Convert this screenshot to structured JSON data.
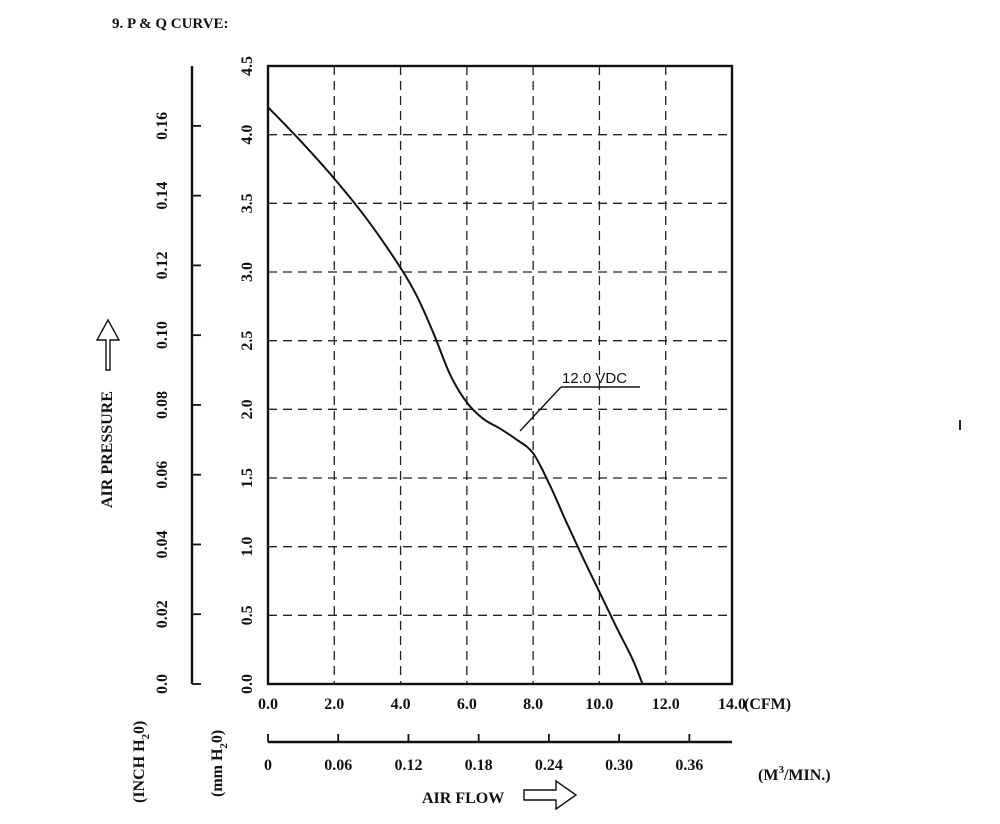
{
  "section_title": "9. P & Q CURVE:",
  "chart_data": {
    "type": "line",
    "title": "",
    "x_primary": {
      "label": "(CFM)",
      "lim": [
        0,
        14
      ],
      "ticks": [
        0,
        2,
        4,
        6,
        8,
        10,
        12,
        14
      ],
      "tick_labels": [
        "0.0",
        "2.0",
        "4.0",
        "6.0",
        "8.0",
        "10.0",
        "12.0",
        "14.0"
      ]
    },
    "x_secondary": {
      "label": "(M",
      "label_sup": "3",
      "label_tail": "/MIN.)",
      "ticks": [
        0,
        0.06,
        0.12,
        0.18,
        0.24,
        0.3,
        0.36
      ],
      "tick_labels": [
        "0",
        "0.06",
        "0.12",
        "0.18",
        "0.24",
        "0.30",
        "0.36"
      ]
    },
    "y_primary": {
      "label": "(mm H",
      "label_sub": "2",
      "label_tail": "0)",
      "lim": [
        0,
        4.5
      ],
      "ticks": [
        0,
        0.5,
        1.0,
        1.5,
        2.0,
        2.5,
        3.0,
        3.5,
        4.0,
        4.5
      ],
      "tick_labels": [
        "0.0",
        "0.5",
        "1.0",
        "1.5",
        "2.0",
        "2.5",
        "3.0",
        "3.5",
        "4.0",
        "4.5"
      ]
    },
    "y_secondary": {
      "label": "(INCH H",
      "label_sub": "2",
      "label_tail": "0)",
      "ticks": [
        0,
        0.02,
        0.04,
        0.06,
        0.08,
        0.1,
        0.12,
        0.14,
        0.16
      ],
      "tick_labels": [
        "0.0",
        "0.02",
        "0.04",
        "0.06",
        "0.08",
        "0.10",
        "0.12",
        "0.14",
        "0.16"
      ]
    },
    "x_axis_title": "AIR FLOW",
    "y_axis_title": "AIR PRESSURE",
    "grid": true,
    "series": [
      {
        "name": "12.0 VDC",
        "x": [
          0,
          1,
          2,
          3,
          4,
          4.5,
          5,
          5.5,
          6,
          6.5,
          7,
          7.5,
          8,
          8.5,
          9,
          9.5,
          10,
          10.5,
          11,
          11.3
        ],
        "y": [
          4.2,
          3.95,
          3.68,
          3.38,
          3.03,
          2.82,
          2.55,
          2.25,
          2.05,
          1.93,
          1.86,
          1.78,
          1.68,
          1.45,
          1.18,
          0.92,
          0.67,
          0.42,
          0.18,
          0.0
        ]
      }
    ],
    "annotations": [
      {
        "text": "12.0 VDC",
        "points_to_x": 7.5,
        "points_to_y": 1.78
      }
    ]
  }
}
